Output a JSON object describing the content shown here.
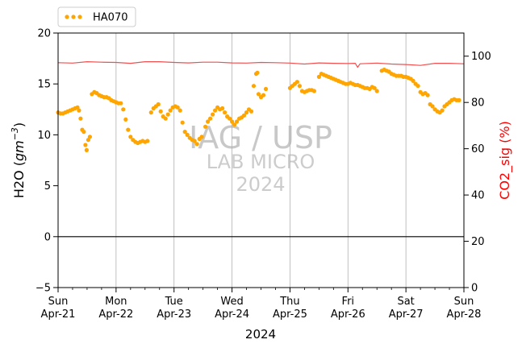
{
  "chart_data": {
    "type": "scatter",
    "legend": {
      "placement": "top-left",
      "entries": [
        "HA070"
      ]
    },
    "x_axis": {
      "label": "2024",
      "ticks": [
        {
          "day": "Sun",
          "date": "Apr-21"
        },
        {
          "day": "Mon",
          "date": "Apr-22"
        },
        {
          "day": "Tue",
          "date": "Apr-23"
        },
        {
          "day": "Wed",
          "date": "Apr-24"
        },
        {
          "day": "Thu",
          "date": "Apr-25"
        },
        {
          "day": "Fri",
          "date": "Apr-26"
        },
        {
          "day": "Sat",
          "date": "Apr-27"
        },
        {
          "day": "Sun",
          "date": "Apr-28"
        }
      ],
      "range": [
        "2024-04-21",
        "2024-04-28"
      ],
      "grid": true
    },
    "y_left": {
      "label": "H2O (gm⁻³)",
      "label_base": "H2O (",
      "label_unit": "gm",
      "label_exp": "−3",
      "label_close": ")",
      "ticks": [
        "−5",
        "0",
        "5",
        "10",
        "15",
        "20"
      ],
      "range": [
        -5,
        20
      ],
      "zero_line": true
    },
    "y_right": {
      "label": "CO2_sig (%)",
      "ticks": [
        "0",
        "20",
        "40",
        "60",
        "80",
        "100"
      ],
      "range": [
        0,
        110
      ],
      "color": "#ff0000"
    },
    "series": [
      {
        "name": "HA070",
        "axis": "left",
        "style": "dots",
        "color": "#ffa500",
        "points": [
          [
            "2024-04-21 00:00",
            12.2
          ],
          [
            "2024-04-21 01:00",
            12.1
          ],
          [
            "2024-04-21 02:00",
            12.1
          ],
          [
            "2024-04-21 03:00",
            12.2
          ],
          [
            "2024-04-21 04:00",
            12.3
          ],
          [
            "2024-04-21 05:00",
            12.4
          ],
          [
            "2024-04-21 06:00",
            12.5
          ],
          [
            "2024-04-21 07:00",
            12.6
          ],
          [
            "2024-04-21 08:00",
            12.7
          ],
          [
            "2024-04-21 08:40",
            12.4
          ],
          [
            "2024-04-21 09:20",
            11.6
          ],
          [
            "2024-04-21 10:00",
            10.5
          ],
          [
            "2024-04-21 10:40",
            10.3
          ],
          [
            "2024-04-21 11:20",
            9.0
          ],
          [
            "2024-04-21 11:50",
            8.5
          ],
          [
            "2024-04-21 12:30",
            9.5
          ],
          [
            "2024-04-21 13:10",
            9.8
          ],
          [
            "2024-04-21 14:00",
            14.0
          ],
          [
            "2024-04-21 15:00",
            14.2
          ],
          [
            "2024-04-21 16:00",
            14.1
          ],
          [
            "2024-04-21 17:00",
            13.9
          ],
          [
            "2024-04-21 18:00",
            13.8
          ],
          [
            "2024-04-21 19:00",
            13.7
          ],
          [
            "2024-04-21 20:00",
            13.7
          ],
          [
            "2024-04-21 21:00",
            13.6
          ],
          [
            "2024-04-21 22:00",
            13.4
          ],
          [
            "2024-04-21 23:00",
            13.3
          ],
          [
            "2024-04-22 00:00",
            13.2
          ],
          [
            "2024-04-22 01:00",
            13.1
          ],
          [
            "2024-04-22 02:00",
            13.1
          ],
          [
            "2024-04-22 03:00",
            12.5
          ],
          [
            "2024-04-22 04:00",
            11.5
          ],
          [
            "2024-04-22 05:00",
            10.5
          ],
          [
            "2024-04-22 06:00",
            9.8
          ],
          [
            "2024-04-22 07:00",
            9.5
          ],
          [
            "2024-04-22 08:00",
            9.3
          ],
          [
            "2024-04-22 09:00",
            9.2
          ],
          [
            "2024-04-22 10:00",
            9.3
          ],
          [
            "2024-04-22 11:00",
            9.4
          ],
          [
            "2024-04-22 12:00",
            9.3
          ],
          [
            "2024-04-22 13:00",
            9.4
          ],
          [
            "2024-04-22 14:30",
            12.2
          ],
          [
            "2024-04-22 15:30",
            12.6
          ],
          [
            "2024-04-22 16:30",
            12.8
          ],
          [
            "2024-04-22 17:30",
            13.0
          ],
          [
            "2024-04-22 18:30",
            12.3
          ],
          [
            "2024-04-22 19:30",
            11.8
          ],
          [
            "2024-04-22 20:30",
            11.6
          ],
          [
            "2024-04-22 21:30",
            12.0
          ],
          [
            "2024-04-22 22:30",
            12.4
          ],
          [
            "2024-04-22 23:30",
            12.7
          ],
          [
            "2024-04-23 00:30",
            12.8
          ],
          [
            "2024-04-23 01:30",
            12.7
          ],
          [
            "2024-04-23 02:30",
            12.4
          ],
          [
            "2024-04-23 03:30",
            11.2
          ],
          [
            "2024-04-23 04:30",
            10.3
          ],
          [
            "2024-04-23 05:30",
            10.0
          ],
          [
            "2024-04-23 06:30",
            9.7
          ],
          [
            "2024-04-23 07:30",
            9.5
          ],
          [
            "2024-04-23 08:30",
            9.4
          ],
          [
            "2024-04-23 09:30",
            9.1
          ],
          [
            "2024-04-23 10:30",
            9.6
          ],
          [
            "2024-04-23 11:30",
            9.8
          ],
          [
            "2024-04-23 13:00",
            10.8
          ],
          [
            "2024-04-23 14:00",
            11.3
          ],
          [
            "2024-04-23 15:00",
            11.6
          ],
          [
            "2024-04-23 16:00",
            12.0
          ],
          [
            "2024-04-23 17:00",
            12.4
          ],
          [
            "2024-04-23 18:00",
            12.7
          ],
          [
            "2024-04-23 19:00",
            12.5
          ],
          [
            "2024-04-23 20:00",
            12.6
          ],
          [
            "2024-04-23 21:00",
            12.2
          ],
          [
            "2024-04-23 22:00",
            11.8
          ],
          [
            "2024-04-23 23:00",
            11.6
          ],
          [
            "2024-04-24 00:00",
            11.3
          ],
          [
            "2024-04-24 01:00",
            11.0
          ],
          [
            "2024-04-24 02:00",
            11.3
          ],
          [
            "2024-04-24 03:00",
            11.6
          ],
          [
            "2024-04-24 04:00",
            11.7
          ],
          [
            "2024-04-24 05:00",
            11.9
          ],
          [
            "2024-04-24 06:00",
            12.2
          ],
          [
            "2024-04-24 07:00",
            12.5
          ],
          [
            "2024-04-24 08:00",
            12.3
          ],
          [
            "2024-04-24 09:00",
            14.8
          ],
          [
            "2024-04-24 10:00",
            16.0
          ],
          [
            "2024-04-24 10:30",
            16.1
          ],
          [
            "2024-04-24 11:00",
            14.0
          ],
          [
            "2024-04-24 12:00",
            13.7
          ],
          [
            "2024-04-24 13:00",
            13.9
          ],
          [
            "2024-04-24 14:00",
            14.5
          ],
          [
            "2024-04-25 00:00",
            14.6
          ],
          [
            "2024-04-25 01:00",
            14.8
          ],
          [
            "2024-04-25 02:00",
            15.0
          ],
          [
            "2024-04-25 03:00",
            15.2
          ],
          [
            "2024-04-25 04:00",
            14.8
          ],
          [
            "2024-04-25 05:00",
            14.3
          ],
          [
            "2024-04-25 06:00",
            14.2
          ],
          [
            "2024-04-25 07:00",
            14.3
          ],
          [
            "2024-04-25 08:00",
            14.4
          ],
          [
            "2024-04-25 09:00",
            14.4
          ],
          [
            "2024-04-25 10:00",
            14.3
          ],
          [
            "2024-04-25 12:00",
            15.7
          ],
          [
            "2024-04-25 13:00",
            16.0
          ],
          [
            "2024-04-25 14:00",
            15.9
          ],
          [
            "2024-04-25 15:00",
            15.8
          ],
          [
            "2024-04-25 16:00",
            15.7
          ],
          [
            "2024-04-25 17:00",
            15.6
          ],
          [
            "2024-04-25 18:00",
            15.5
          ],
          [
            "2024-04-25 19:00",
            15.4
          ],
          [
            "2024-04-25 20:00",
            15.3
          ],
          [
            "2024-04-25 21:00",
            15.2
          ],
          [
            "2024-04-25 22:00",
            15.1
          ],
          [
            "2024-04-25 23:00",
            15.0
          ],
          [
            "2024-04-26 00:00",
            15.0
          ],
          [
            "2024-04-26 01:00",
            15.1
          ],
          [
            "2024-04-26 02:00",
            15.0
          ],
          [
            "2024-04-26 03:00",
            14.9
          ],
          [
            "2024-04-26 04:00",
            14.9
          ],
          [
            "2024-04-26 05:00",
            14.8
          ],
          [
            "2024-04-26 06:00",
            14.7
          ],
          [
            "2024-04-26 07:00",
            14.6
          ],
          [
            "2024-04-26 08:00",
            14.6
          ],
          [
            "2024-04-26 09:00",
            14.5
          ],
          [
            "2024-04-26 10:00",
            14.7
          ],
          [
            "2024-04-26 11:00",
            14.6
          ],
          [
            "2024-04-26 12:00",
            14.3
          ],
          [
            "2024-04-26 14:00",
            16.3
          ],
          [
            "2024-04-26 15:00",
            16.4
          ],
          [
            "2024-04-26 16:00",
            16.3
          ],
          [
            "2024-04-26 17:00",
            16.2
          ],
          [
            "2024-04-26 18:00",
            16.0
          ],
          [
            "2024-04-26 19:00",
            15.9
          ],
          [
            "2024-04-26 20:00",
            15.8
          ],
          [
            "2024-04-26 21:00",
            15.8
          ],
          [
            "2024-04-26 22:00",
            15.8
          ],
          [
            "2024-04-26 23:00",
            15.7
          ],
          [
            "2024-04-27 00:00",
            15.7
          ],
          [
            "2024-04-27 01:00",
            15.6
          ],
          [
            "2024-04-27 02:00",
            15.5
          ],
          [
            "2024-04-27 03:00",
            15.3
          ],
          [
            "2024-04-27 04:00",
            15.0
          ],
          [
            "2024-04-27 05:00",
            14.8
          ],
          [
            "2024-04-27 06:00",
            14.2
          ],
          [
            "2024-04-27 07:00",
            14.0
          ],
          [
            "2024-04-27 08:00",
            14.1
          ],
          [
            "2024-04-27 09:00",
            13.9
          ],
          [
            "2024-04-27 10:00",
            13.0
          ],
          [
            "2024-04-27 11:00",
            12.8
          ],
          [
            "2024-04-27 12:00",
            12.5
          ],
          [
            "2024-04-27 13:00",
            12.3
          ],
          [
            "2024-04-27 14:00",
            12.2
          ],
          [
            "2024-04-27 15:00",
            12.4
          ],
          [
            "2024-04-27 16:00",
            12.8
          ],
          [
            "2024-04-27 17:00",
            13.0
          ],
          [
            "2024-04-27 18:00",
            13.2
          ],
          [
            "2024-04-27 19:00",
            13.4
          ],
          [
            "2024-04-27 20:00",
            13.5
          ],
          [
            "2024-04-27 21:00",
            13.4
          ],
          [
            "2024-04-27 22:00",
            13.4
          ]
        ]
      },
      {
        "name": "CO2_sig",
        "axis": "right",
        "style": "line",
        "color": "#f05050",
        "points": [
          [
            "2024-04-21 00:00",
            97.2
          ],
          [
            "2024-04-21 06:00",
            97.0
          ],
          [
            "2024-04-21 12:00",
            97.6
          ],
          [
            "2024-04-21 18:00",
            97.4
          ],
          [
            "2024-04-22 00:00",
            97.3
          ],
          [
            "2024-04-22 06:00",
            96.9
          ],
          [
            "2024-04-22 12:00",
            97.6
          ],
          [
            "2024-04-22 18:00",
            97.6
          ],
          [
            "2024-04-23 00:00",
            97.3
          ],
          [
            "2024-04-23 06:00",
            97.1
          ],
          [
            "2024-04-23 12:00",
            97.4
          ],
          [
            "2024-04-23 18:00",
            97.4
          ],
          [
            "2024-04-24 00:00",
            97.1
          ],
          [
            "2024-04-24 06:00",
            97.0
          ],
          [
            "2024-04-24 12:00",
            97.3
          ],
          [
            "2024-04-24 18:00",
            97.2
          ],
          [
            "2024-04-25 00:00",
            97.0
          ],
          [
            "2024-04-25 06:00",
            96.6
          ],
          [
            "2024-04-25 12:00",
            97.1
          ],
          [
            "2024-04-25 18:00",
            96.9
          ],
          [
            "2024-04-26 00:00",
            96.8
          ],
          [
            "2024-04-26 03:00",
            96.9
          ],
          [
            "2024-04-26 04:00",
            95.2
          ],
          [
            "2024-04-26 05:00",
            96.7
          ],
          [
            "2024-04-26 12:00",
            97.0
          ],
          [
            "2024-04-26 18:00",
            96.6
          ],
          [
            "2024-04-27 00:00",
            96.4
          ],
          [
            "2024-04-27 06:00",
            96.0
          ],
          [
            "2024-04-27 12:00",
            96.9
          ],
          [
            "2024-04-27 18:00",
            96.9
          ],
          [
            "2024-04-28 00:00",
            96.7
          ]
        ]
      }
    ],
    "watermark": [
      "IAG / USP",
      "LAB MICRO",
      "2024"
    ]
  }
}
